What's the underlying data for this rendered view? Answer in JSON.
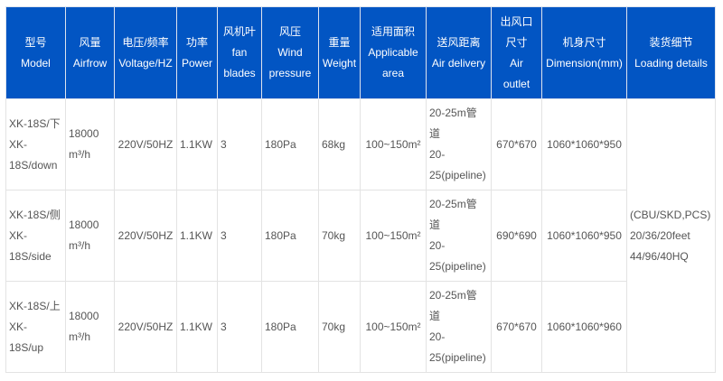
{
  "colors": {
    "header_bg": "#0255c3",
    "header_text": "#ffffff",
    "body_text": "#555555"
  },
  "headers": [
    [
      "型号",
      "Model"
    ],
    [
      "风量",
      "Airfrow"
    ],
    [
      "电压/频率",
      "Voltage/HZ"
    ],
    [
      "功率",
      "Power"
    ],
    [
      "风机叶",
      "fan",
      "blades"
    ],
    [
      "风压",
      "Wind",
      "pressure"
    ],
    [
      "重量",
      "Weight"
    ],
    [
      "适用面积",
      "Applicable",
      "area"
    ],
    [
      "送风距离",
      "Air delivery"
    ],
    [
      "出风口",
      "尺寸",
      "Air",
      "outlet"
    ],
    [
      "机身尺寸",
      "Dimension(mm)"
    ],
    [
      "装货细节",
      "Loading details"
    ]
  ],
  "rows": [
    {
      "model": [
        "XK-18S/下",
        "XK-",
        "18S/down"
      ],
      "airflow": [
        "18000",
        "m³/h"
      ],
      "voltage": "220V/50HZ",
      "power": "1.1KW",
      "blades": "3",
      "pressure": "180Pa",
      "weight": "68kg",
      "area": "100~150m²",
      "delivery": [
        "20-25m管",
        "道",
        "20-",
        "25(pipeline)"
      ],
      "outlet": "670*670",
      "dimension": "1060*1060*950"
    },
    {
      "model": [
        "XK-18S/侧",
        "XK-",
        "18S/side"
      ],
      "airflow": [
        "18000",
        "m³/h"
      ],
      "voltage": "220V/50HZ",
      "power": "1.1KW",
      "blades": "3",
      "pressure": "180Pa",
      "weight": "70kg",
      "area": "100~150m²",
      "delivery": [
        "20-25m管",
        "道",
        "20-",
        "25(pipeline)"
      ],
      "outlet": "690*690",
      "dimension": "1060*1060*950"
    },
    {
      "model": [
        "XK-18S/上",
        "XK-",
        "18S/up"
      ],
      "airflow": [
        "18000",
        "m³/h"
      ],
      "voltage": "220V/50HZ",
      "power": "1.1KW",
      "blades": "3",
      "pressure": "180Pa",
      "weight": "70kg",
      "area": "100~150m²",
      "delivery": [
        "20-25m管",
        "道",
        "20-",
        "25(pipeline)"
      ],
      "outlet": "670*670",
      "dimension": "1060*1060*960"
    }
  ],
  "loading_details": [
    "(CBU/SKD,PCS)",
    "20/36/20feet",
    "44/96/40HQ"
  ]
}
